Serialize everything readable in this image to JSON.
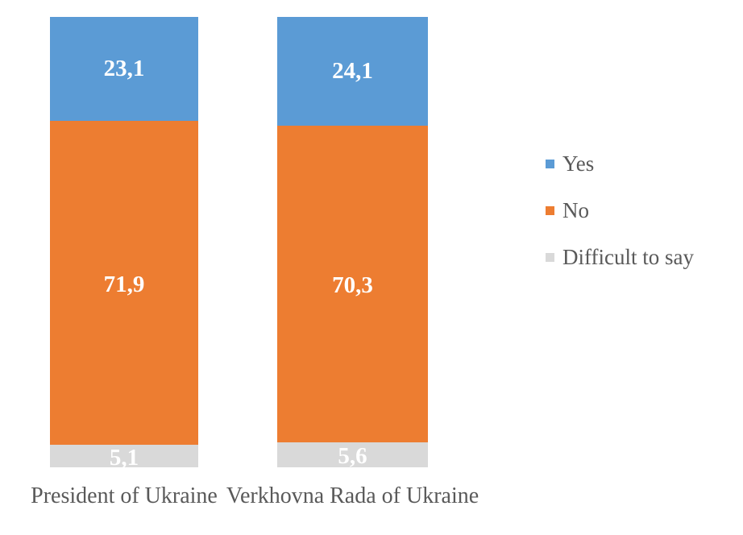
{
  "chart_data": {
    "type": "bar",
    "stacked": true,
    "orientation": "vertical",
    "title": "",
    "xlabel": "",
    "ylabel": "",
    "grid": false,
    "axes_visible": false,
    "legend_position": "right",
    "value_label_color": "#FFFFFF",
    "text_color": "#595959",
    "background_color": "#FFFFFF",
    "categories": [
      "President of Ukraine",
      "Verkhovna Rada of Ukraine"
    ],
    "series": [
      {
        "name": "Yes",
        "color": "#5B9BD5",
        "values": [
          23.1,
          24.1
        ],
        "labels": [
          "23,1",
          "24,1"
        ]
      },
      {
        "name": "No",
        "color": "#ED7D31",
        "values": [
          71.9,
          70.3
        ],
        "labels": [
          "71,9",
          "70,3"
        ]
      },
      {
        "name": "Difficult to say",
        "color": "#D9D9D9",
        "values": [
          5.1,
          5.6
        ],
        "labels": [
          "5,1",
          "5,6"
        ]
      }
    ]
  }
}
